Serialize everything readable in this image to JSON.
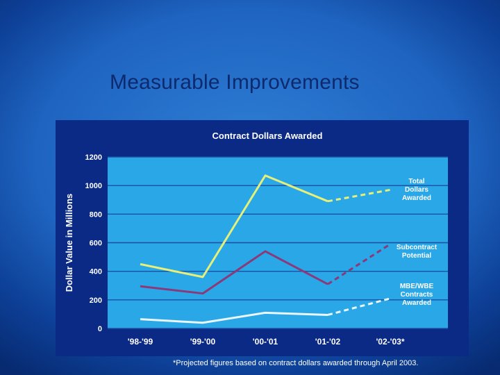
{
  "slide": {
    "title": "Measurable Improvements",
    "footnote": "*Projected figures based on contract dollars awarded through April 2003."
  },
  "colors": {
    "panel": "#0b2a86",
    "plot_area": "#29a7e6",
    "grid": "#1b4fa0",
    "total": "#e6ef7a",
    "subcontract": "#8a3a7a",
    "mbe": "#eaf6fb",
    "text": "#ffffff"
  },
  "chart_data": {
    "type": "line",
    "title": "Contract Dollars Awarded",
    "ylabel": "Dollar Value in Millions",
    "xlabel": "",
    "categories": [
      "'98-'99",
      "'99-'00",
      "'00-'01",
      "'01-'02",
      "'02-'03*"
    ],
    "yticks": [
      0,
      200,
      400,
      600,
      800,
      1000,
      1200
    ],
    "ylim": [
      0,
      1200
    ],
    "grid": true,
    "projected_from_index": 3,
    "series": [
      {
        "name": "Total Dollars Awarded",
        "label_lines": [
          "Total",
          "Dollars",
          "Awarded"
        ],
        "color_key": "total",
        "values": [
          450,
          360,
          1070,
          890,
          970
        ]
      },
      {
        "name": "Subcontract Potential",
        "label_lines": [
          "Subcontract",
          "Potential"
        ],
        "color_key": "subcontract",
        "values": [
          295,
          245,
          540,
          310,
          590
        ]
      },
      {
        "name": "MBE/WBE Contracts Awarded",
        "label_lines": [
          "MBE/WBE",
          "Contracts",
          "Awarded"
        ],
        "color_key": "mbe",
        "values": [
          65,
          40,
          110,
          95,
          210
        ]
      }
    ]
  }
}
